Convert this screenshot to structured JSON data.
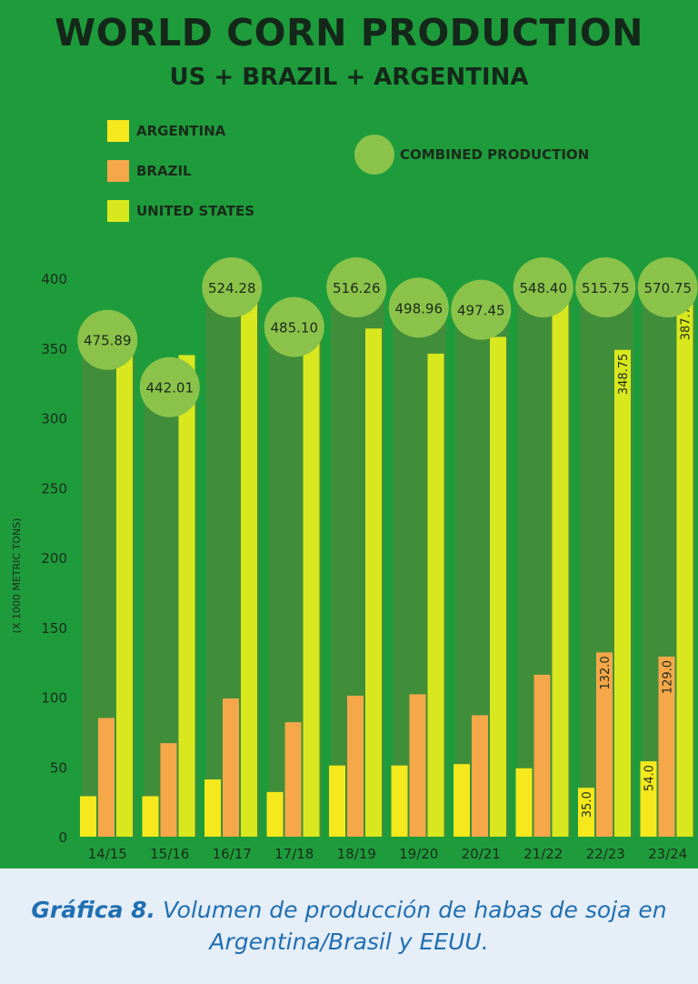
{
  "chart_data": {
    "type": "bar",
    "title": "WORLD CORN PRODUCTION",
    "subtitle": "US + BRAZIL + ARGENTINA",
    "ylabel": "(X 1000 METRIC TONS)",
    "xlabel": "",
    "ylim": [
      0,
      400
    ],
    "yticks": [
      0,
      50,
      100,
      150,
      200,
      250,
      300,
      350,
      400
    ],
    "categories": [
      "14/15",
      "15/16",
      "16/17",
      "17/18",
      "18/19",
      "19/20",
      "20/21",
      "21/22",
      "22/23",
      "23/24"
    ],
    "series": [
      {
        "name": "ARGENTINA",
        "color": "#f5e81c",
        "values": [
          29,
          29,
          41,
          32,
          51,
          51,
          52,
          49,
          35.0,
          54.0
        ]
      },
      {
        "name": "BRAZIL",
        "color": "#f5a74a",
        "values": [
          85,
          67,
          99,
          82,
          101,
          102,
          87,
          116,
          132.0,
          129.0
        ]
      },
      {
        "name": "UNITED STATES",
        "color": "#d9e81e",
        "values": [
          361,
          345,
          385,
          371,
          364,
          346,
          358,
          383,
          348.75,
          387.75
        ]
      }
    ],
    "combined": {
      "name": "COMBINED PRODUCTION",
      "color": "#8bc34a",
      "values": [
        475.89,
        442.01,
        524.28,
        485.1,
        516.26,
        498.96,
        497.45,
        548.4,
        515.75,
        570.75
      ],
      "labels": [
        "475.89",
        "442.01",
        "524.28",
        "485.10",
        "516.26",
        "498.96",
        "497.45",
        "548.40",
        "515.75",
        "570.75"
      ]
    },
    "bar_value_labels": {
      "22/23": [
        "35.0",
        "132.0",
        "348.75"
      ],
      "23/24": [
        "54.0",
        "129.0",
        "387.75"
      ]
    },
    "legend": {
      "placement": "top-left"
    },
    "grid": false
  },
  "caption": {
    "label": "Gráfica 8.",
    "text": " Volumen de producción de habas de soja en Argentina/Brasil y EEUU."
  }
}
